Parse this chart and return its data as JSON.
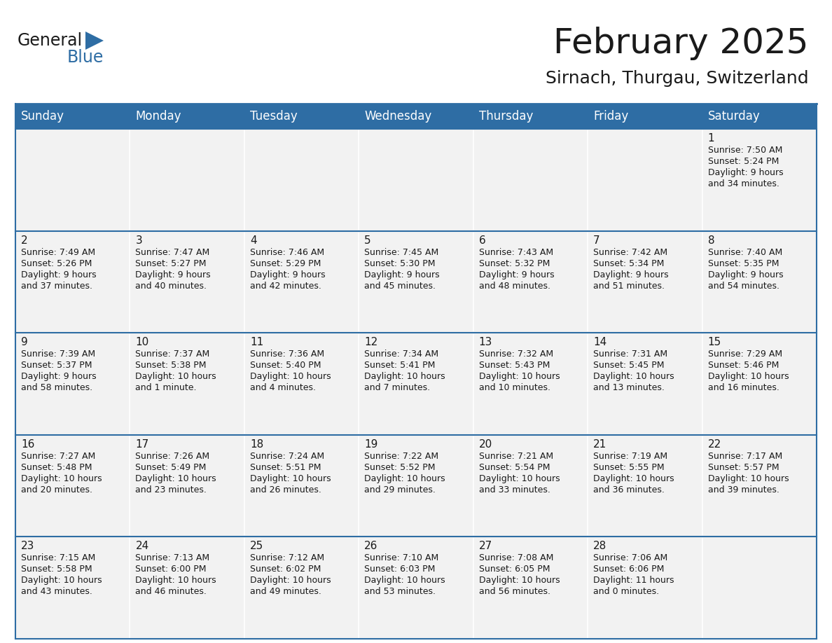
{
  "title": "February 2025",
  "subtitle": "Sirnach, Thurgau, Switzerland",
  "header_bg": "#2E6DA4",
  "header_text": "#FFFFFF",
  "cell_bg": "#F2F2F2",
  "border_color": "#2E6DA4",
  "text_color": "#1a1a1a",
  "day_headers": [
    "Sunday",
    "Monday",
    "Tuesday",
    "Wednesday",
    "Thursday",
    "Friday",
    "Saturday"
  ],
  "days_data": [
    {
      "day": 1,
      "col": 6,
      "row": 0,
      "sunrise": "7:50 AM",
      "sunset": "5:24 PM",
      "dl1": "9 hours",
      "dl2": "and 34 minutes."
    },
    {
      "day": 2,
      "col": 0,
      "row": 1,
      "sunrise": "7:49 AM",
      "sunset": "5:26 PM",
      "dl1": "9 hours",
      "dl2": "and 37 minutes."
    },
    {
      "day": 3,
      "col": 1,
      "row": 1,
      "sunrise": "7:47 AM",
      "sunset": "5:27 PM",
      "dl1": "9 hours",
      "dl2": "and 40 minutes."
    },
    {
      "day": 4,
      "col": 2,
      "row": 1,
      "sunrise": "7:46 AM",
      "sunset": "5:29 PM",
      "dl1": "9 hours",
      "dl2": "and 42 minutes."
    },
    {
      "day": 5,
      "col": 3,
      "row": 1,
      "sunrise": "7:45 AM",
      "sunset": "5:30 PM",
      "dl1": "9 hours",
      "dl2": "and 45 minutes."
    },
    {
      "day": 6,
      "col": 4,
      "row": 1,
      "sunrise": "7:43 AM",
      "sunset": "5:32 PM",
      "dl1": "9 hours",
      "dl2": "and 48 minutes."
    },
    {
      "day": 7,
      "col": 5,
      "row": 1,
      "sunrise": "7:42 AM",
      "sunset": "5:34 PM",
      "dl1": "9 hours",
      "dl2": "and 51 minutes."
    },
    {
      "day": 8,
      "col": 6,
      "row": 1,
      "sunrise": "7:40 AM",
      "sunset": "5:35 PM",
      "dl1": "9 hours",
      "dl2": "and 54 minutes."
    },
    {
      "day": 9,
      "col": 0,
      "row": 2,
      "sunrise": "7:39 AM",
      "sunset": "5:37 PM",
      "dl1": "9 hours",
      "dl2": "and 58 minutes."
    },
    {
      "day": 10,
      "col": 1,
      "row": 2,
      "sunrise": "7:37 AM",
      "sunset": "5:38 PM",
      "dl1": "10 hours",
      "dl2": "and 1 minute."
    },
    {
      "day": 11,
      "col": 2,
      "row": 2,
      "sunrise": "7:36 AM",
      "sunset": "5:40 PM",
      "dl1": "10 hours",
      "dl2": "and 4 minutes."
    },
    {
      "day": 12,
      "col": 3,
      "row": 2,
      "sunrise": "7:34 AM",
      "sunset": "5:41 PM",
      "dl1": "10 hours",
      "dl2": "and 7 minutes."
    },
    {
      "day": 13,
      "col": 4,
      "row": 2,
      "sunrise": "7:32 AM",
      "sunset": "5:43 PM",
      "dl1": "10 hours",
      "dl2": "and 10 minutes."
    },
    {
      "day": 14,
      "col": 5,
      "row": 2,
      "sunrise": "7:31 AM",
      "sunset": "5:45 PM",
      "dl1": "10 hours",
      "dl2": "and 13 minutes."
    },
    {
      "day": 15,
      "col": 6,
      "row": 2,
      "sunrise": "7:29 AM",
      "sunset": "5:46 PM",
      "dl1": "10 hours",
      "dl2": "and 16 minutes."
    },
    {
      "day": 16,
      "col": 0,
      "row": 3,
      "sunrise": "7:27 AM",
      "sunset": "5:48 PM",
      "dl1": "10 hours",
      "dl2": "and 20 minutes."
    },
    {
      "day": 17,
      "col": 1,
      "row": 3,
      "sunrise": "7:26 AM",
      "sunset": "5:49 PM",
      "dl1": "10 hours",
      "dl2": "and 23 minutes."
    },
    {
      "day": 18,
      "col": 2,
      "row": 3,
      "sunrise": "7:24 AM",
      "sunset": "5:51 PM",
      "dl1": "10 hours",
      "dl2": "and 26 minutes."
    },
    {
      "day": 19,
      "col": 3,
      "row": 3,
      "sunrise": "7:22 AM",
      "sunset": "5:52 PM",
      "dl1": "10 hours",
      "dl2": "and 29 minutes."
    },
    {
      "day": 20,
      "col": 4,
      "row": 3,
      "sunrise": "7:21 AM",
      "sunset": "5:54 PM",
      "dl1": "10 hours",
      "dl2": "and 33 minutes."
    },
    {
      "day": 21,
      "col": 5,
      "row": 3,
      "sunrise": "7:19 AM",
      "sunset": "5:55 PM",
      "dl1": "10 hours",
      "dl2": "and 36 minutes."
    },
    {
      "day": 22,
      "col": 6,
      "row": 3,
      "sunrise": "7:17 AM",
      "sunset": "5:57 PM",
      "dl1": "10 hours",
      "dl2": "and 39 minutes."
    },
    {
      "day": 23,
      "col": 0,
      "row": 4,
      "sunrise": "7:15 AM",
      "sunset": "5:58 PM",
      "dl1": "10 hours",
      "dl2": "and 43 minutes."
    },
    {
      "day": 24,
      "col": 1,
      "row": 4,
      "sunrise": "7:13 AM",
      "sunset": "6:00 PM",
      "dl1": "10 hours",
      "dl2": "and 46 minutes."
    },
    {
      "day": 25,
      "col": 2,
      "row": 4,
      "sunrise": "7:12 AM",
      "sunset": "6:02 PM",
      "dl1": "10 hours",
      "dl2": "and 49 minutes."
    },
    {
      "day": 26,
      "col": 3,
      "row": 4,
      "sunrise": "7:10 AM",
      "sunset": "6:03 PM",
      "dl1": "10 hours",
      "dl2": "and 53 minutes."
    },
    {
      "day": 27,
      "col": 4,
      "row": 4,
      "sunrise": "7:08 AM",
      "sunset": "6:05 PM",
      "dl1": "10 hours",
      "dl2": "and 56 minutes."
    },
    {
      "day": 28,
      "col": 5,
      "row": 4,
      "sunrise": "7:06 AM",
      "sunset": "6:06 PM",
      "dl1": "11 hours",
      "dl2": "and 0 minutes."
    }
  ],
  "num_rows": 5,
  "num_cols": 7,
  "logo_text1": "General",
  "logo_text2": "Blue",
  "logo_color1": "#1a1a1a",
  "logo_color2": "#2E6DA4",
  "title_fontsize": 36,
  "subtitle_fontsize": 18,
  "header_fontsize": 12,
  "day_num_fontsize": 11,
  "cell_text_fontsize": 9
}
